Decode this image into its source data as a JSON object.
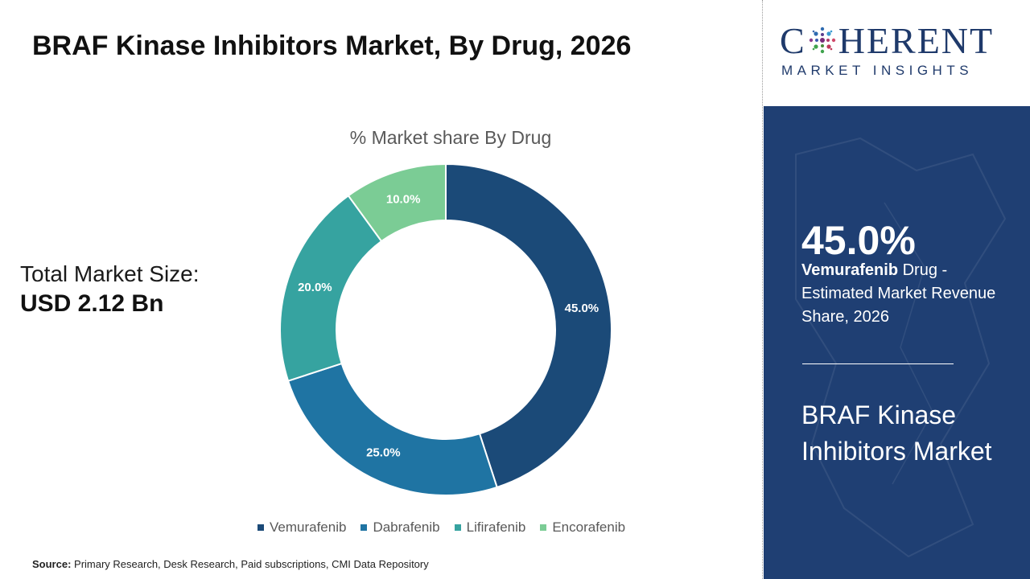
{
  "header": {
    "title": "BRAF Kinase Inhibitors Market, By Drug, 2026"
  },
  "market_size": {
    "label": "Total Market Size:",
    "value": "USD 2.12 Bn"
  },
  "chart_data": {
    "type": "pie",
    "subtype": "donut",
    "title": "% Market share By Drug",
    "categories": [
      "Vemurafenib",
      "Dabrafenib",
      "Lifirafenib",
      "Encorafenib"
    ],
    "values": [
      45.0,
      25.0,
      20.0,
      10.0
    ],
    "labels": [
      "45.0%",
      "25.0%",
      "20.0%",
      "10.0%"
    ],
    "colors": [
      "#1b4a78",
      "#1f74a3",
      "#36a3a0",
      "#7bcc95"
    ],
    "legend_position": "bottom"
  },
  "source": {
    "label": "Source:",
    "text": "Primary Research, Desk Research, Paid subscriptions, CMI Data Repository"
  },
  "logo": {
    "main_left": "C",
    "main_right": "HERENT",
    "sub": "MARKET INSIGHTS"
  },
  "side_panel": {
    "highlight_value": "45.0%",
    "highlight_drug": "Vemurafenib",
    "highlight_desc": " Drug - Estimated Market Revenue Share, 2026",
    "market_name": "BRAF Kinase Inhibitors Market",
    "background_color": "#1f3f73"
  }
}
